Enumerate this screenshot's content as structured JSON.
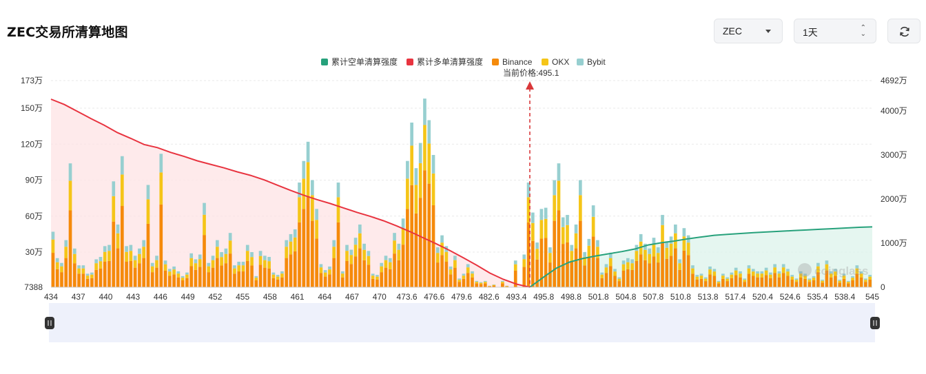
{
  "header": {
    "title": "ZEC交易所清算地图",
    "coin_select": "ZEC",
    "range_select": "1天",
    "refresh_icon": "refresh-icon"
  },
  "colors": {
    "short_cum": "#26a17b",
    "long_cum": "#e8333f",
    "binance": "#f58a0b",
    "okx": "#f5c518",
    "bybit": "#97cfd0",
    "price_line": "#d9383a"
  },
  "chart_data": {
    "type": "bar",
    "legend": [
      "累计空单清算强度",
      "累计多单清算强度",
      "Binance",
      "OKX",
      "Bybit"
    ],
    "current_price_label": "当前价格:495.1",
    "current_price": 495.1,
    "y_left_ticks": [
      "173万",
      "150万",
      "120万",
      "90万",
      "60万",
      "30万",
      "7388"
    ],
    "y_right_ticks": [
      "4692万",
      "4000万",
      "3000万",
      "2000万",
      "1000万",
      "0"
    ],
    "y_left_range": [
      7388,
      1730000
    ],
    "y_right_range": [
      0,
      46920000
    ],
    "x_ticks": [
      "434",
      "437",
      "440",
      "443",
      "446",
      "449",
      "452",
      "455",
      "458",
      "461",
      "464",
      "467",
      "470",
      "473.6",
      "476.6",
      "479.6",
      "482.6",
      "493.4",
      "495.8",
      "498.8",
      "501.8",
      "504.8",
      "507.8",
      "510.8",
      "513.8",
      "517.4",
      "520.4",
      "524.6",
      "535.4",
      "538.4",
      "545"
    ],
    "bar_totals": [
      47,
      25,
      21,
      40,
      104,
      33,
      19,
      19,
      12,
      13,
      24,
      26,
      35,
      36,
      89,
      53,
      110,
      35,
      36,
      27,
      33,
      40,
      86,
      21,
      27,
      112,
      23,
      16,
      18,
      14,
      10,
      13,
      29,
      24,
      28,
      71,
      21,
      27,
      40,
      30,
      33,
      46,
      19,
      22,
      22,
      36,
      30,
      10,
      31,
      27,
      26,
      13,
      11,
      14,
      40,
      45,
      49,
      88,
      106,
      122,
      90,
      66,
      20,
      15,
      18,
      40,
      88,
      14,
      36,
      32,
      42,
      53,
      37,
      31,
      12,
      11,
      21,
      27,
      25,
      46,
      37,
      58,
      106,
      138,
      100,
      121,
      158,
      140,
      111,
      34,
      44,
      35,
      18,
      27,
      8,
      12,
      20,
      14,
      6,
      5,
      6,
      2,
      3,
      1,
      6,
      2,
      1,
      23,
      1,
      28,
      88,
      63,
      38,
      66,
      67,
      34,
      90,
      104,
      59,
      61,
      36,
      53,
      90,
      30,
      41,
      69,
      40,
      13,
      20,
      29,
      16,
      9,
      23,
      25,
      24,
      36,
      45,
      37,
      33,
      42,
      34,
      61,
      39,
      43,
      53,
      24,
      50,
      44,
      19,
      11,
      12,
      9,
      18,
      16,
      6,
      12,
      9,
      13,
      17,
      14,
      8,
      19,
      16,
      14,
      14,
      17,
      13,
      20,
      14,
      20,
      16,
      11,
      8,
      14,
      12,
      8,
      10,
      21,
      7,
      23,
      14,
      16,
      7,
      12,
      6,
      10,
      19,
      14,
      8,
      11
    ],
    "long_cumulative_wan": [
      4270,
      4150,
      3990,
      3830,
      3680,
      3510,
      3380,
      3240,
      3170,
      3060,
      2970,
      2870,
      2790,
      2710,
      2620,
      2540,
      2440,
      2320,
      2200,
      2090,
      1990,
      1900,
      1800,
      1700,
      1610,
      1510,
      1390,
      1260,
      1120,
      980,
      830,
      670,
      500,
      320,
      180,
      70,
      0
    ],
    "short_cumulative_wan": [
      0,
      220,
      430,
      570,
      650,
      710,
      760,
      810,
      870,
      960,
      1010,
      1050,
      1100,
      1140,
      1180,
      1200,
      1220,
      1240,
      1255,
      1270,
      1285,
      1300,
      1315,
      1330,
      1345,
      1360,
      1370
    ]
  }
}
